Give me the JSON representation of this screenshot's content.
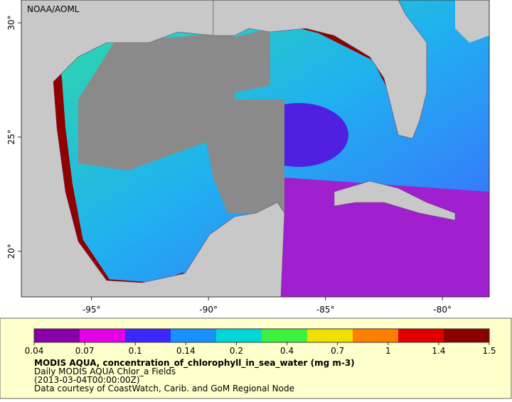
{
  "map": {
    "title": "NOAA/AOML",
    "xlim": [
      -98,
      -78
    ],
    "ylim": [
      18,
      31
    ],
    "xticks": [
      {
        "value": -95,
        "label": "-95°"
      },
      {
        "value": -90,
        "label": "-90°"
      },
      {
        "value": -85,
        "label": "-85°"
      },
      {
        "value": -80,
        "label": "-80°"
      }
    ],
    "yticks": [
      {
        "value": 30,
        "label": "30°"
      },
      {
        "value": 25,
        "label": "25°"
      },
      {
        "value": 20,
        "label": "20°"
      }
    ]
  },
  "colorbar": {
    "ticks": [
      0.04,
      0.07,
      0.1,
      0.14,
      0.2,
      0.4,
      0.7,
      1,
      1.4,
      1.5
    ],
    "colors": [
      "#8a00a8",
      "#e400e4",
      "#3c28ff",
      "#1890ff",
      "#00d8d8",
      "#40f040",
      "#f0e000",
      "#ff8000",
      "#e00000",
      "#8c0000"
    ]
  },
  "caption": {
    "title": "MODIS AQUA, concentration_of_chlorophyll_in_sea_water (mg m-3)",
    "lines": [
      "Daily MODIS AQUA Chlor_a Fields",
      "(2013-03-04T00:00:00Z)",
      "Data courtesy of CoastWatch, Carib. and GoM Regional Node"
    ]
  }
}
